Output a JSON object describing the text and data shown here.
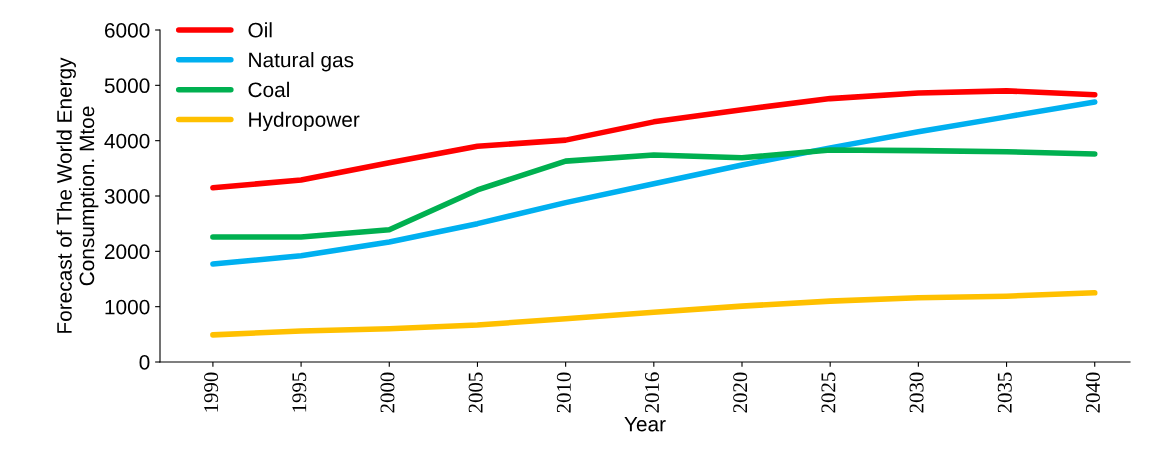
{
  "chart_data": {
    "type": "line",
    "xlabel": "Year",
    "ylabel": "Forecast of The World Energy\nConsumption. Mtoe",
    "categories": [
      "1990",
      "1995",
      "2000",
      "2005",
      "2010",
      "2016",
      "2020",
      "2025",
      "2030",
      "2035",
      "2040"
    ],
    "series": [
      {
        "name": "Oil",
        "color": "#ff0000",
        "values": [
          3150,
          3290,
          3600,
          3900,
          4010,
          4340,
          4560,
          4760,
          4860,
          4900,
          4830
        ]
      },
      {
        "name": "Natural gas",
        "color": "#00b0f0",
        "values": [
          1770,
          1920,
          2170,
          2500,
          2880,
          3220,
          3560,
          3870,
          4160,
          4430,
          4700
        ]
      },
      {
        "name": "Coal",
        "color": "#00b050",
        "values": [
          2260,
          2260,
          2390,
          3110,
          3630,
          3740,
          3690,
          3830,
          3820,
          3800,
          3760
        ]
      },
      {
        "name": "Hydropower",
        "color": "#ffc000",
        "values": [
          490,
          560,
          600,
          670,
          780,
          900,
          1010,
          1100,
          1160,
          1190,
          1250
        ]
      }
    ],
    "ylim": [
      0,
      6000
    ],
    "yticks": [
      0,
      1000,
      2000,
      3000,
      4000,
      5000,
      6000
    ],
    "grid": false,
    "legend": "top left",
    "marker": "none",
    "line_style": "solid"
  }
}
